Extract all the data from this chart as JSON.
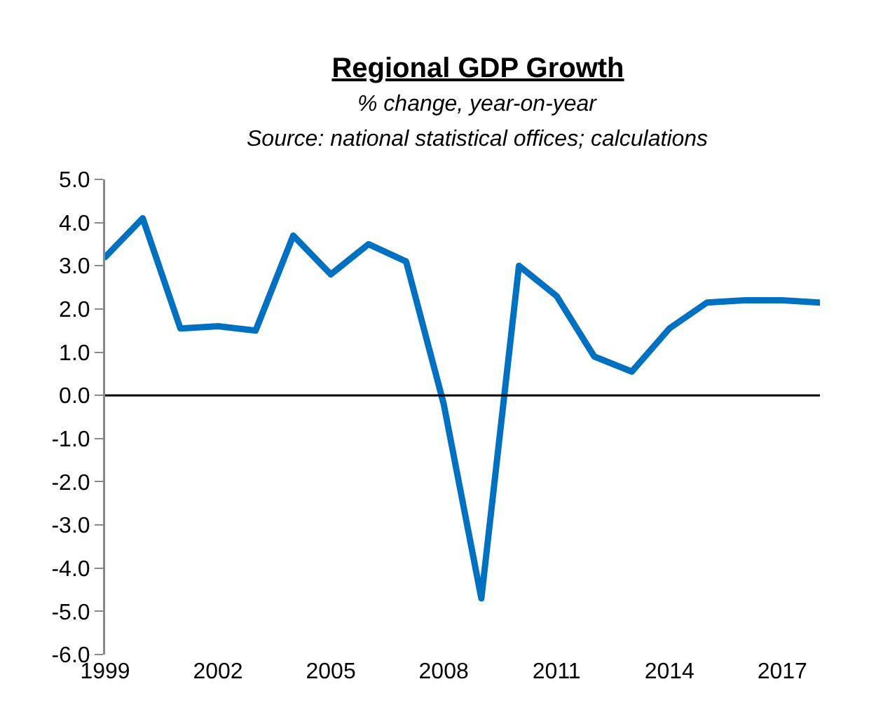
{
  "chart_data": {
    "type": "line",
    "title": "Regional GDP Growth",
    "subtitle": "% change, year-on-year",
    "annotations": [
      "Source: national statistical offices; calculations"
    ],
    "ref_lines": [
      {
        "axis": "y",
        "value": 0,
        "color": "#000000"
      }
    ],
    "x": [
      1999,
      2000,
      2001,
      2002,
      2003,
      2004,
      2005,
      2006,
      2007,
      2008,
      2009,
      2010,
      2011,
      2012,
      2013,
      2014,
      2015,
      2016,
      2017,
      2018
    ],
    "series": [
      {
        "color": "#0070c0",
        "values": [
          3.2,
          4.1,
          1.55,
          1.6,
          1.5,
          3.7,
          2.8,
          3.5,
          3.1,
          -0.2,
          -4.7,
          3.0,
          2.3,
          0.9,
          0.55,
          1.55,
          2.15,
          2.2,
          2.2,
          2.15
        ]
      }
    ],
    "xlim": [
      1999,
      2018
    ],
    "xticks": [
      1999,
      2002,
      2005,
      2008,
      2011,
      2014,
      2017
    ],
    "ylim": [
      -6,
      5
    ],
    "yticks": [
      {
        "value": 5,
        "label": "5.0"
      },
      {
        "value": 4,
        "label": "4.0"
      },
      {
        "value": 3,
        "label": "3.0"
      },
      {
        "value": 2,
        "label": "2.0"
      },
      {
        "value": 1,
        "label": "1.0"
      },
      {
        "value": 0,
        "label": "0.0"
      },
      {
        "value": -1,
        "label": "-1.0"
      },
      {
        "value": -2,
        "label": "-2.0"
      },
      {
        "value": -3,
        "label": "-3.0"
      },
      {
        "value": -4,
        "label": "-4.0"
      },
      {
        "value": -5,
        "label": "-5.0"
      },
      {
        "value": -6,
        "label": "-6.0"
      }
    ],
    "grid": false,
    "marker": "none",
    "line_style": "solid"
  }
}
